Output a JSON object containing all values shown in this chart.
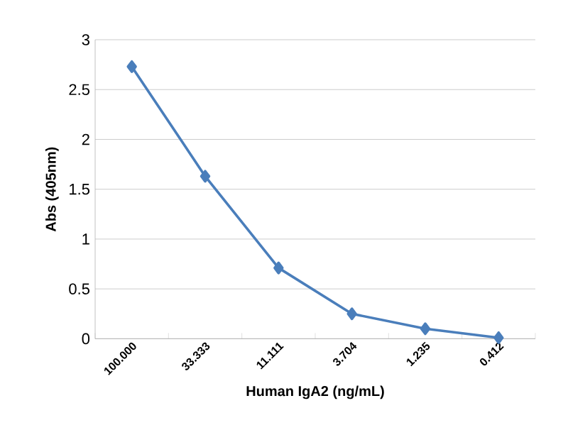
{
  "chart_data": {
    "type": "line",
    "xlabel": "Human IgA2 (ng/mL)",
    "ylabel": "Abs (405nm)",
    "categories": [
      "100.000",
      "33.333",
      "11.111",
      "3.704",
      "1.235",
      "0.412"
    ],
    "series": [
      {
        "color": "#4a7ebb",
        "values": [
          2.73,
          1.63,
          0.71,
          0.25,
          0.1,
          0.01
        ]
      }
    ],
    "ylim": [
      0,
      3
    ],
    "yticks": [
      0,
      0.5,
      1,
      1.5,
      2,
      2.5,
      3
    ],
    "grid": "y",
    "marker": "diamond",
    "line_style": "solid"
  }
}
